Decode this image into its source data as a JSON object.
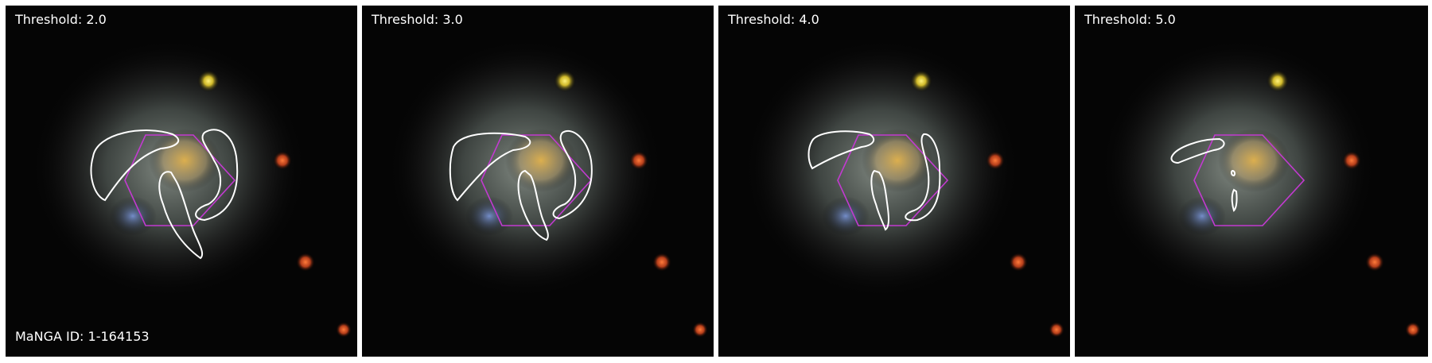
{
  "panels": [
    {
      "threshold_label": "Threshold: 2.0",
      "threshold": 2.0
    },
    {
      "threshold_label": "Threshold: 3.0",
      "threshold": 3.0
    },
    {
      "threshold_label": "Threshold: 4.0",
      "threshold": 4.0
    },
    {
      "threshold_label": "Threshold: 5.0",
      "threshold": 5.0
    }
  ],
  "manga_id_label": "MaNGA ID: 1-164153",
  "colors": {
    "contour": "#ffffff",
    "hexagon": "#c23ad0",
    "background": "#000000",
    "separator": "#ffffff"
  }
}
